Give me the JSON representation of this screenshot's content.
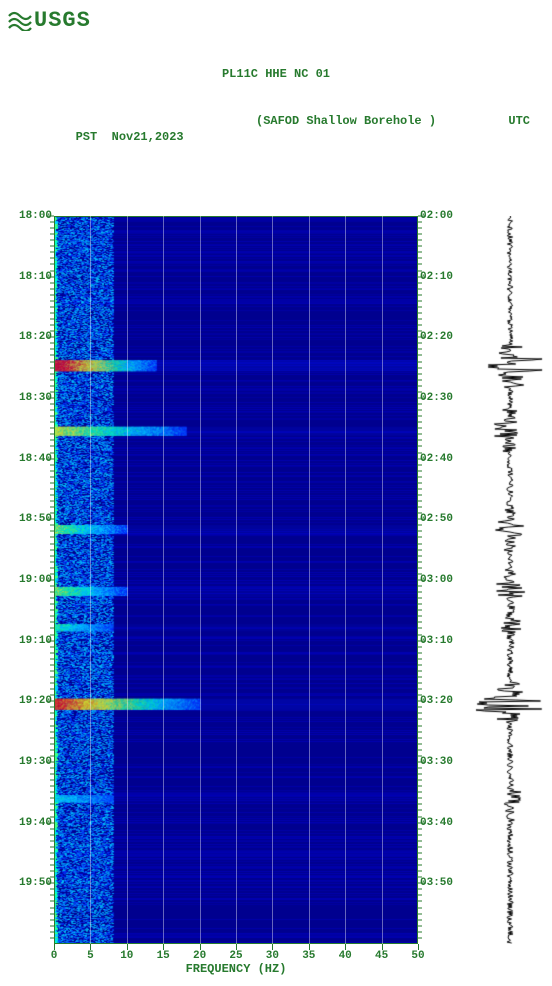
{
  "logo_text": "USGS",
  "header": {
    "title": "PL11C HHE NC 01",
    "left_tz": "PST",
    "date": "Nov21,2023",
    "station": "(SAFOD Shallow Borehole )",
    "right_tz": "UTC"
  },
  "spectrogram": {
    "type": "spectrogram",
    "xlabel": "FREQUENCY (HZ)",
    "xlim": [
      0,
      50
    ],
    "xticks": [
      0,
      5,
      10,
      15,
      20,
      25,
      30,
      35,
      40,
      45,
      50
    ],
    "ylim": [
      0,
      1
    ],
    "left_ticks": [
      "18:00",
      "18:10",
      "18:20",
      "18:30",
      "18:40",
      "18:50",
      "19:00",
      "19:10",
      "19:20",
      "19:30",
      "19:40",
      "19:50"
    ],
    "right_ticks": [
      "02:00",
      "02:10",
      "02:20",
      "02:30",
      "02:40",
      "02:50",
      "03:00",
      "03:10",
      "03:20",
      "03:30",
      "03:40",
      "03:50"
    ],
    "minor_ticks_per_interval": 10,
    "background_color": "#00008f",
    "base_low_color": "#0000d0",
    "band_color": "#0020ff",
    "speckle_colors": [
      "#0030ff",
      "#0060ff",
      "#00a0ff",
      "#00d0ff",
      "#00ffc0",
      "#40ff80",
      "#c0ff40",
      "#ffff00",
      "#ffb000",
      "#ff4000",
      "#ff0000"
    ],
    "low_freq_cutoff_hz": 8,
    "grid_color": "rgba(255,255,255,0.4)",
    "events": [
      {
        "t": 0.205,
        "width_hz": 14,
        "intensity": 1.0
      },
      {
        "t": 0.295,
        "width_hz": 18,
        "intensity": 0.6
      },
      {
        "t": 0.43,
        "width_hz": 10,
        "intensity": 0.5
      },
      {
        "t": 0.515,
        "width_hz": 10,
        "intensity": 0.5
      },
      {
        "t": 0.67,
        "width_hz": 20,
        "intensity": 0.9
      },
      {
        "t": 0.565,
        "width_hz": 8,
        "intensity": 0.4
      },
      {
        "t": 0.8,
        "width_hz": 8,
        "intensity": 0.3
      }
    ],
    "axis_color": "#277a2e",
    "title_fontsize": 12,
    "label_fontsize": 12,
    "tick_fontsize": 11
  },
  "waveform": {
    "type": "waveform",
    "color": "#000000",
    "amplitude_base": 0.08,
    "events_amp": [
      {
        "t": 0.205,
        "amp": 0.9
      },
      {
        "t": 0.295,
        "amp": 0.5
      },
      {
        "t": 0.43,
        "amp": 0.4
      },
      {
        "t": 0.515,
        "amp": 0.4
      },
      {
        "t": 0.67,
        "amp": 0.9
      },
      {
        "t": 0.565,
        "amp": 0.3
      },
      {
        "t": 0.8,
        "amp": 0.3
      }
    ]
  }
}
